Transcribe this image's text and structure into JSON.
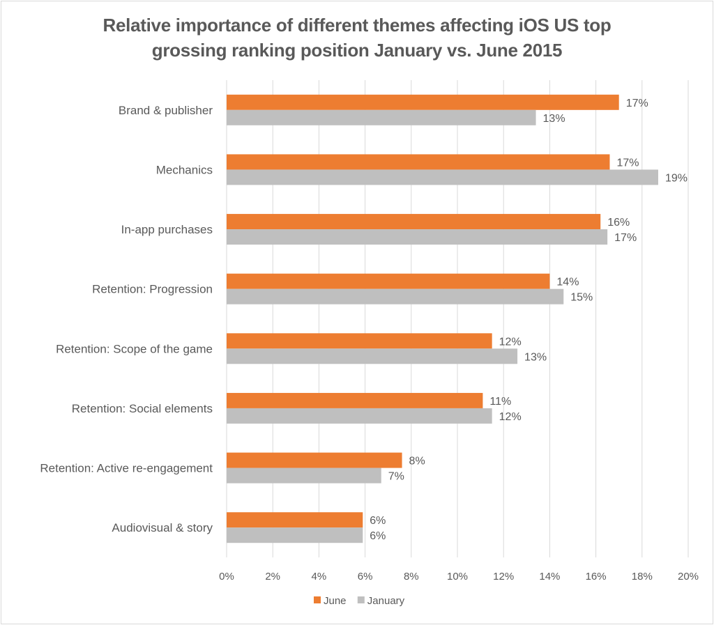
{
  "chart_data": {
    "type": "bar",
    "orientation": "horizontal",
    "title_line1": "Relative importance of different themes  affecting iOS US top",
    "title_line2": "grossing ranking position January vs. June 2015",
    "categories": [
      "Brand & publisher",
      "Mechanics",
      "In-app purchases",
      "Retention: Progression",
      "Retention: Scope of the game",
      "Retention: Social elements",
      "Retention: Active re-engagement",
      "Audiovisual & story"
    ],
    "series": [
      {
        "name": "June",
        "color": "#ed7d31",
        "values": [
          17.0,
          16.6,
          16.2,
          14.0,
          11.5,
          11.1,
          7.6,
          5.9
        ],
        "labels": [
          "17%",
          "17%",
          "16%",
          "14%",
          "12%",
          "11%",
          "8%",
          "6%"
        ]
      },
      {
        "name": "January",
        "color": "#bfbfbf",
        "values": [
          13.4,
          18.7,
          16.5,
          14.6,
          12.6,
          11.5,
          6.7,
          5.9
        ],
        "labels": [
          "13%",
          "19%",
          "17%",
          "15%",
          "13%",
          "12%",
          "7%",
          "6%"
        ]
      }
    ],
    "xlim": [
      0,
      20
    ],
    "xticks": [
      "0%",
      "2%",
      "4%",
      "6%",
      "8%",
      "10%",
      "12%",
      "14%",
      "16%",
      "18%",
      "20%"
    ],
    "grid": true,
    "legend": "bottom"
  }
}
